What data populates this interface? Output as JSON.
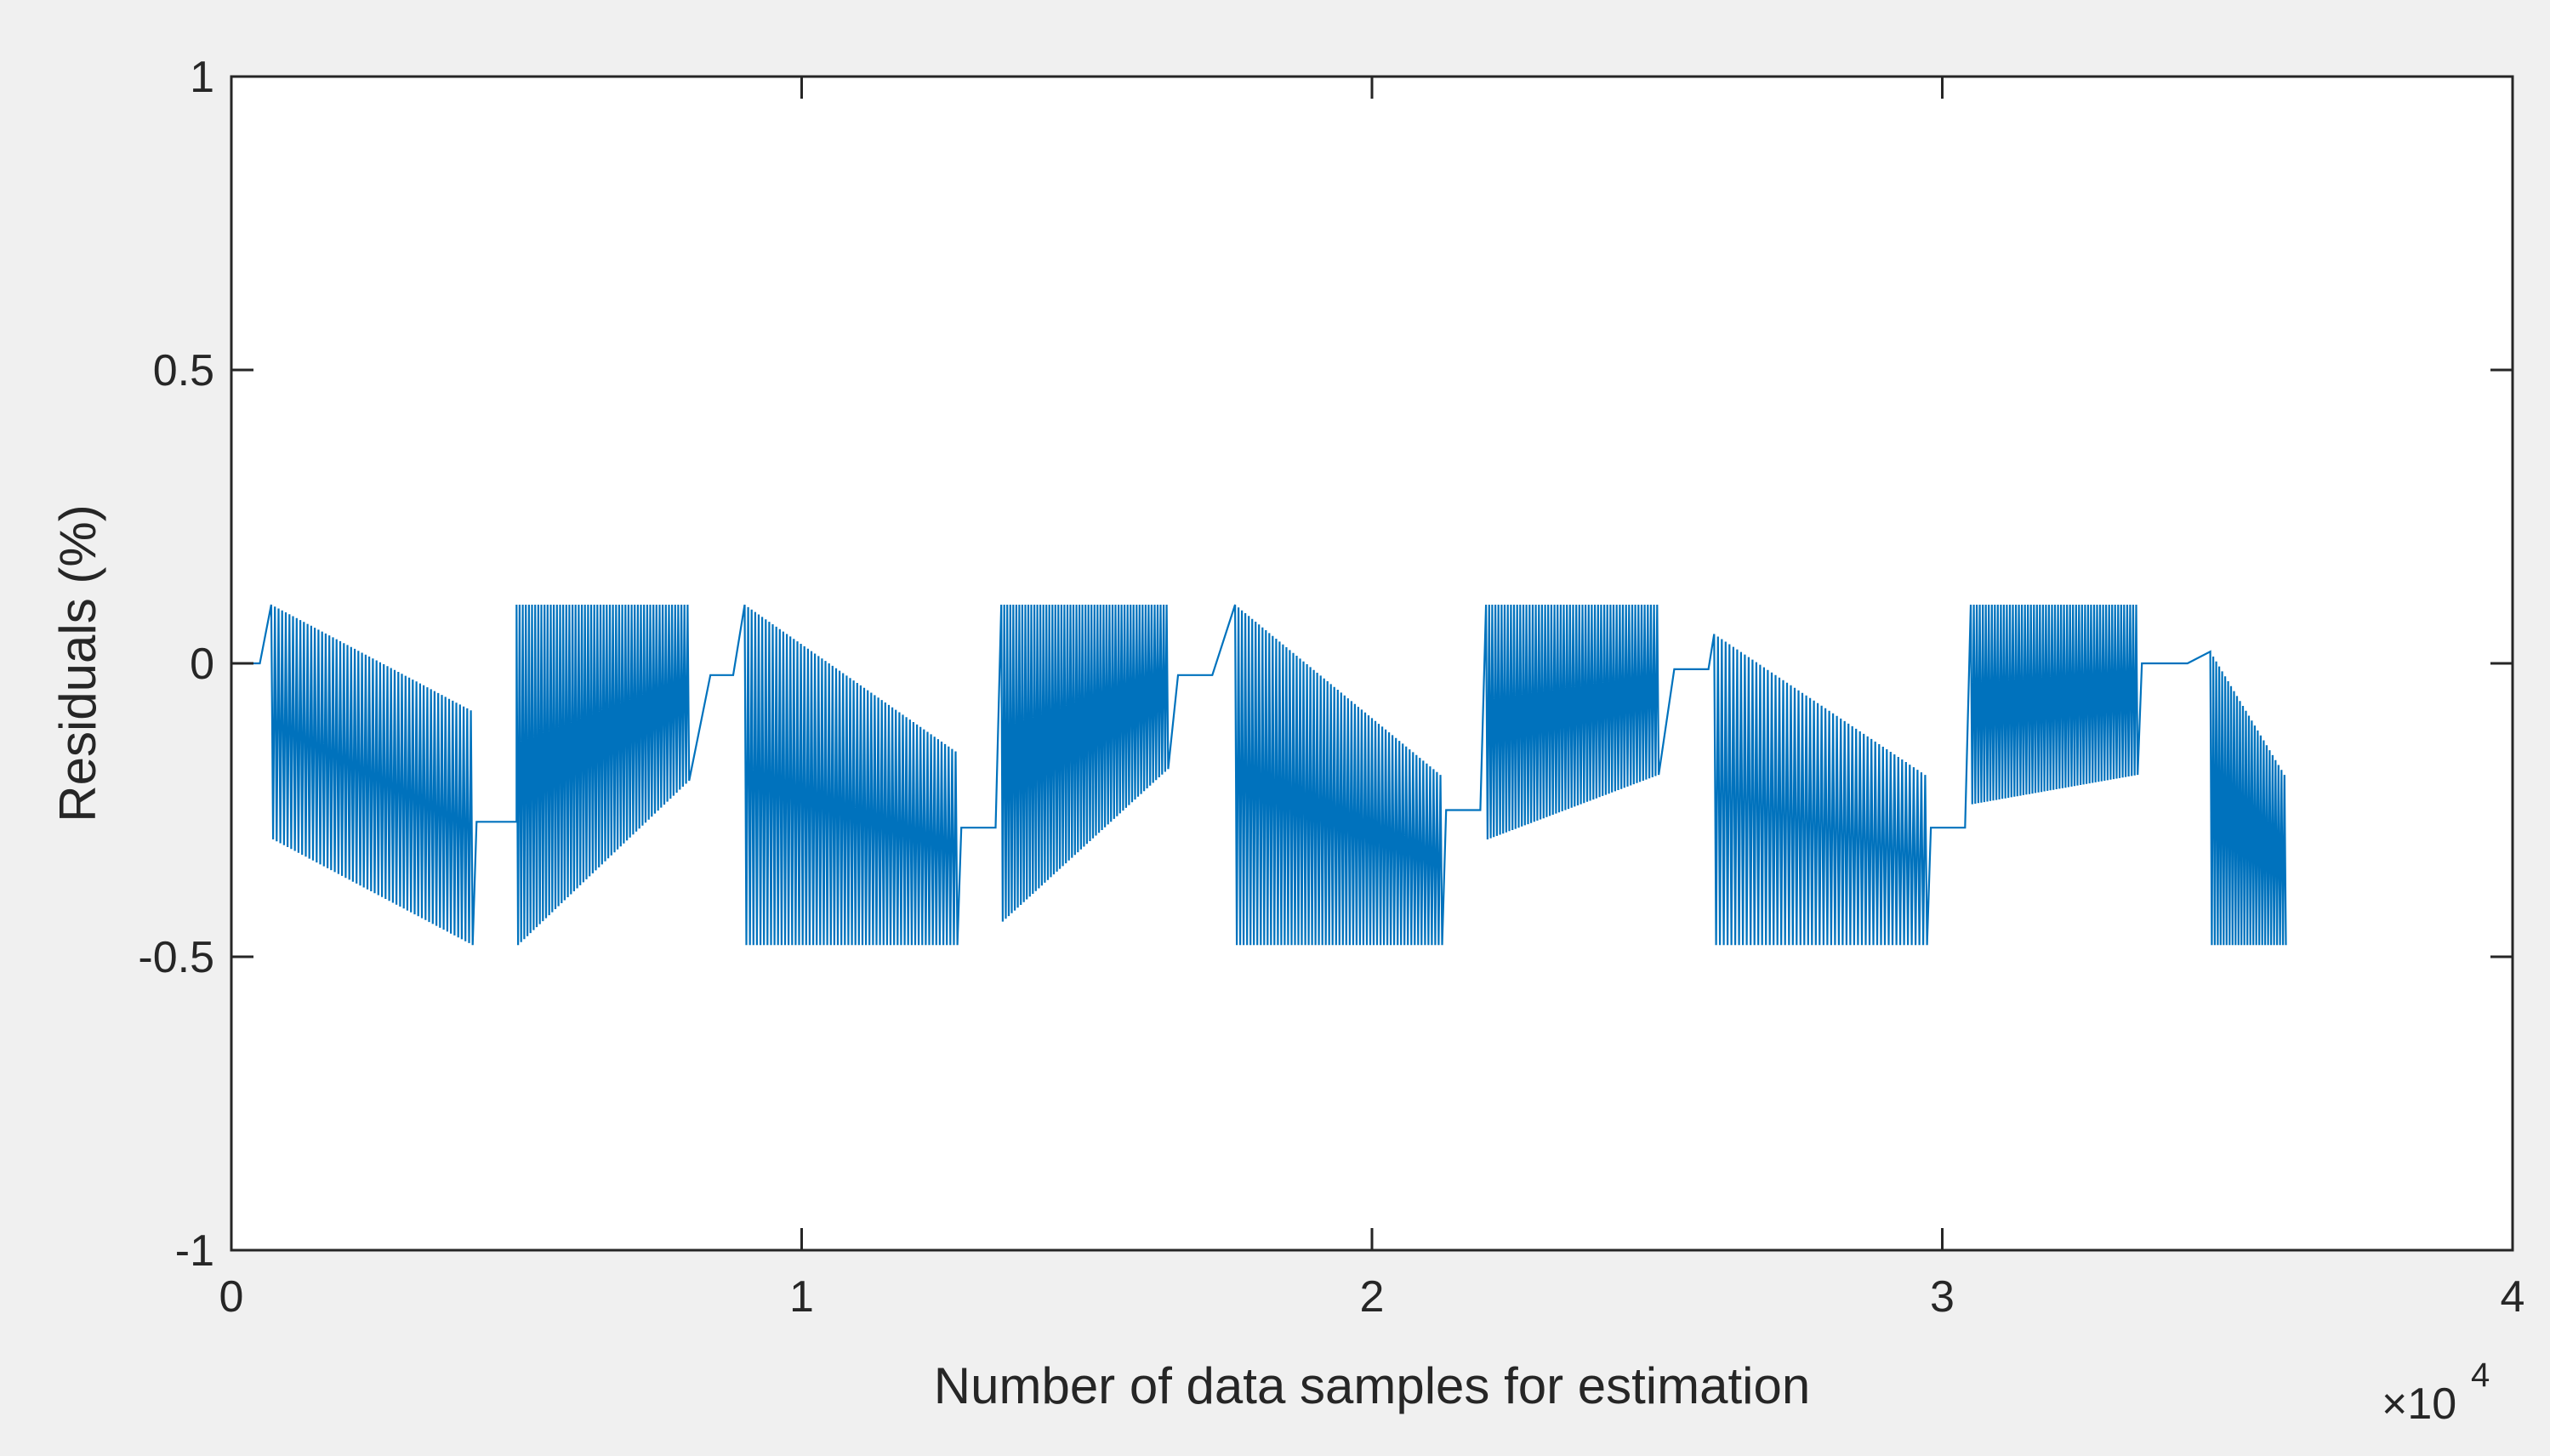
{
  "chart_data": {
    "type": "line",
    "title": "",
    "xlabel": "Number of data samples for estimation",
    "ylabel": "Residuals (%)",
    "x_exponent_label": "×10",
    "x_exponent_power": "4",
    "xlim": [
      0,
      4
    ],
    "ylim": [
      -1,
      1
    ],
    "xticks": [
      0,
      1,
      2,
      3,
      4
    ],
    "xtick_labels": [
      "0",
      "1",
      "2",
      "3",
      "4"
    ],
    "yticks": [
      -1,
      -0.5,
      0,
      0.5,
      1
    ],
    "ytick_labels": [
      "-1",
      "-0.5",
      "0",
      "0.5",
      "1"
    ],
    "grid": false,
    "line_color": "#0072BD",
    "axes_color": "#262626",
    "background_color": "#ffffff",
    "series": [
      {
        "x_unit_multiplier": 10000,
        "segments": [
          {
            "type": "flat",
            "x": [
              0,
              0.05
            ],
            "y": [
              0,
              0
            ]
          },
          {
            "type": "oscillation",
            "x": [
              0.07,
              0.42
            ],
            "high": [
              0.1,
              -0.08
            ],
            "low": [
              -0.3,
              -0.48
            ],
            "cycles": 55
          },
          {
            "type": "flat",
            "x": [
              0.43,
              0.5
            ],
            "y": [
              -0.27,
              -0.27
            ]
          },
          {
            "type": "oscillation",
            "x": [
              0.5,
              0.8
            ],
            "high": [
              0.1,
              0.1
            ],
            "low": [
              -0.48,
              -0.2
            ],
            "cycles": 55
          },
          {
            "type": "flat",
            "x": [
              0.84,
              0.88
            ],
            "y": [
              -0.02,
              -0.02
            ]
          },
          {
            "type": "oscillation",
            "x": [
              0.9,
              1.27
            ],
            "high": [
              0.1,
              -0.15
            ],
            "low": [
              -0.48,
              -0.48
            ],
            "cycles": 60
          },
          {
            "type": "flat",
            "x": [
              1.28,
              1.34
            ],
            "y": [
              -0.28,
              -0.28
            ]
          },
          {
            "type": "oscillation",
            "x": [
              1.35,
              1.64
            ],
            "high": [
              0.1,
              0.1
            ],
            "low": [
              -0.44,
              -0.18
            ],
            "cycles": 55
          },
          {
            "type": "flat",
            "x": [
              1.66,
              1.72
            ],
            "y": [
              -0.02,
              -0.02
            ]
          },
          {
            "type": "oscillation",
            "x": [
              1.76,
              2.12
            ],
            "high": [
              0.1,
              -0.19
            ],
            "low": [
              -0.48,
              -0.48
            ],
            "cycles": 60
          },
          {
            "type": "flat",
            "x": [
              2.13,
              2.19
            ],
            "y": [
              -0.25,
              -0.25
            ]
          },
          {
            "type": "oscillation",
            "x": [
              2.2,
              2.5
            ],
            "high": [
              0.1,
              0.1
            ],
            "low": [
              -0.3,
              -0.19
            ],
            "cycles": 55
          },
          {
            "type": "flat",
            "x": [
              2.53,
              2.59
            ],
            "y": [
              -0.01,
              -0.01
            ]
          },
          {
            "type": "oscillation",
            "x": [
              2.6,
              2.97
            ],
            "high": [
              0.05,
              -0.19
            ],
            "low": [
              -0.48,
              -0.48
            ],
            "cycles": 55
          },
          {
            "type": "flat",
            "x": [
              2.98,
              3.04
            ],
            "y": [
              -0.28,
              -0.28
            ]
          },
          {
            "type": "oscillation",
            "x": [
              3.05,
              3.34
            ],
            "high": [
              0.1,
              0.1
            ],
            "low": [
              -0.24,
              -0.19
            ],
            "cycles": 55
          },
          {
            "type": "flat",
            "x": [
              3.35,
              3.43
            ],
            "y": [
              0,
              0
            ]
          },
          {
            "type": "oscillation",
            "x": [
              3.47,
              3.6
            ],
            "high": [
              0.02,
              -0.19
            ],
            "low": [
              -0.48,
              -0.48
            ],
            "cycles": 25
          }
        ]
      }
    ]
  }
}
